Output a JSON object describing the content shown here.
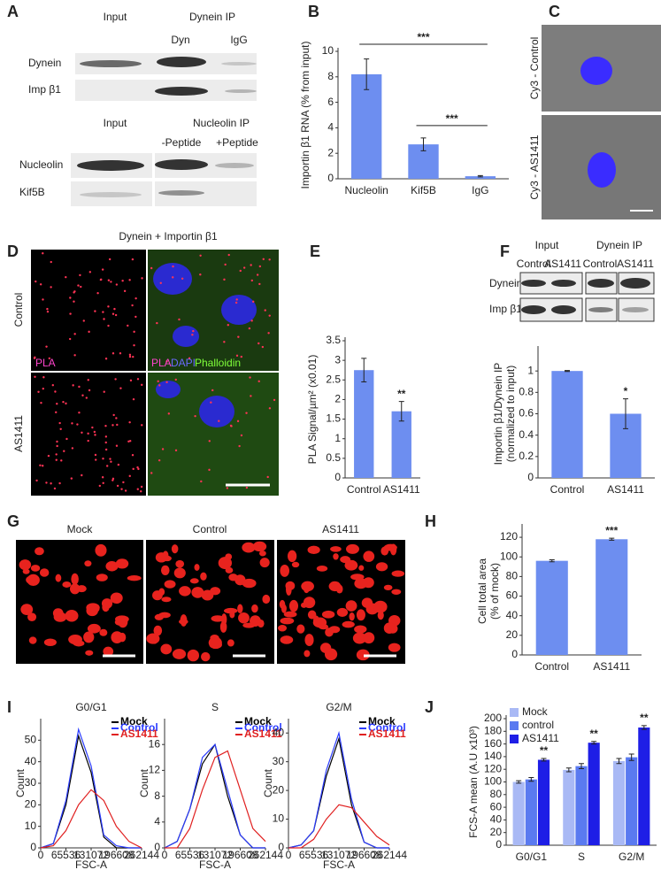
{
  "panels": {
    "A": {
      "letter": "A",
      "input_1": "Input",
      "ip_1": "Dynein IP",
      "lane_dyn": "Dyn",
      "lane_igg": "IgG",
      "row_dynein": "Dynein",
      "row_imp": "Imp β1",
      "input_2": "Input",
      "ip_2": "Nucleolin IP",
      "lane_minus": "-Peptide",
      "lane_plus": "+Peptide",
      "row_nucleolin": "Nucleolin",
      "row_kif5b": "Kif5B"
    },
    "B": {
      "letter": "B"
    },
    "C": {
      "letter": "C",
      "top": "Cy3 - Control",
      "bottom": "Cy3 - AS1411"
    },
    "D": {
      "letter": "D",
      "title": "Dynein + Importin β1",
      "row_1": "Control",
      "row_2": "AS1411",
      "pla_1": "PLA",
      "pla_2": "PLA",
      "dapi": "DAPI",
      "phalloidin": "Phalloidin"
    },
    "E": {
      "letter": "E"
    },
    "F": {
      "letter": "F",
      "input": "Input",
      "ip": "Dynein IP",
      "lanes": [
        "Control",
        "AS1411",
        "Control",
        "AS1411"
      ],
      "row_dynein": "Dynein",
      "row_imp": "Imp β1"
    },
    "G": {
      "letter": "G",
      "columns": [
        "Mock",
        "Control",
        "AS1411"
      ]
    },
    "H": {
      "letter": "H"
    },
    "I": {
      "letter": "I"
    },
    "J": {
      "letter": "J"
    }
  },
  "chart_data": [
    {
      "type": "bar",
      "ylabel": "Importin β1 RNA (% from input)",
      "categories": [
        "Nucleolin",
        "Kif5B",
        "IgG"
      ],
      "values": [
        8.2,
        2.7,
        0.2
      ],
      "errors": [
        1.2,
        0.5,
        0.05
      ],
      "color": "#6d8ef0",
      "ylim": [
        0,
        10
      ],
      "yticks": [
        0,
        2,
        4,
        6,
        8,
        10
      ],
      "annotations": [
        "***",
        "***"
      ]
    },
    {
      "type": "bar",
      "ylabel": "PLA Signal/µm² (x0.01)",
      "categories": [
        "Control",
        "AS1411"
      ],
      "values": [
        2.75,
        1.7
      ],
      "errors": [
        0.3,
        0.25
      ],
      "color": "#6d8ef0",
      "ylim": [
        0,
        3.5
      ],
      "yticks": [
        0,
        0.5,
        1,
        1.5,
        2,
        2.5,
        3,
        3.5
      ],
      "annotations": [
        "**"
      ]
    },
    {
      "type": "bar",
      "ylabel": [
        "Importin β1/Dynein IP",
        "(normalized to input)"
      ],
      "categories": [
        "Control",
        "AS1411"
      ],
      "values": [
        1.0,
        0.6
      ],
      "errors": [
        0.005,
        0.14
      ],
      "color": "#6d8ef0",
      "ylim": [
        0,
        1.2
      ],
      "yticks": [
        0,
        0.2,
        0.4,
        0.6,
        0.8,
        1
      ],
      "annotations": [
        "*"
      ]
    },
    {
      "type": "bar",
      "ylabel": [
        "Cell total area",
        "(% of mock)"
      ],
      "categories": [
        "Control",
        "AS1411"
      ],
      "values": [
        96,
        118
      ],
      "errors": [
        1,
        1
      ],
      "color": "#6d8ef0",
      "ylim": [
        0,
        130
      ],
      "yticks": [
        0,
        20,
        40,
        60,
        80,
        100,
        120
      ],
      "annotations": [
        "***"
      ]
    },
    {
      "type": "bar",
      "ylabel": "FCS-A mean (A.U x10³)",
      "categories": [
        "G0/G1",
        "S",
        "G2/M"
      ],
      "series": [
        {
          "name": "Mock",
          "color": "#a9b9f5",
          "values": [
            100,
            119,
            133
          ],
          "errors": [
            2,
            3,
            4
          ]
        },
        {
          "name": "control",
          "color": "#5a7af0",
          "values": [
            104,
            125,
            139
          ],
          "errors": [
            3,
            4,
            5
          ]
        },
        {
          "name": "AS1411",
          "color": "#1e1ee6",
          "values": [
            135,
            162,
            186
          ],
          "errors": [
            2,
            2,
            3
          ]
        }
      ],
      "ylim": [
        0,
        200
      ],
      "yticks": [
        0,
        20,
        40,
        60,
        80,
        100,
        120,
        140,
        160,
        180,
        200
      ],
      "annotations": [
        "**",
        "**",
        "**"
      ]
    },
    {
      "type": "line",
      "title": "G0/G1",
      "xlabel": "FSC-A",
      "ylabel": "Count",
      "x": [
        0,
        32768,
        65536,
        98304,
        131072,
        163840,
        196608,
        229376,
        262144
      ],
      "series": [
        {
          "name": "Mock",
          "color": "#000000",
          "values": [
            0,
            2,
            20,
            52,
            35,
            5,
            0,
            0,
            0
          ]
        },
        {
          "name": "Control",
          "color": "#2b3cff",
          "values": [
            0,
            2,
            22,
            55,
            38,
            6,
            1,
            0,
            0
          ]
        },
        {
          "name": "AS1411",
          "color": "#e02020",
          "values": [
            0,
            1,
            8,
            20,
            27,
            22,
            10,
            3,
            0
          ]
        }
      ],
      "xlim": [
        0,
        262144
      ],
      "xticks": [
        0,
        65536,
        131072,
        196608,
        262144
      ],
      "ylim": [
        0,
        60
      ],
      "yticks": [
        0,
        10,
        20,
        30,
        40,
        50
      ]
    },
    {
      "type": "line",
      "title": "S",
      "xlabel": "FSC-A",
      "ylabel": "Count",
      "x": [
        0,
        32768,
        65536,
        98304,
        131072,
        163840,
        196608,
        229376,
        262144
      ],
      "series": [
        {
          "name": "Mock",
          "color": "#000000",
          "values": [
            0,
            1,
            6,
            13,
            16,
            8,
            2,
            0,
            0
          ]
        },
        {
          "name": "Control",
          "color": "#2b3cff",
          "values": [
            0,
            1,
            6,
            14,
            16,
            9,
            2,
            0,
            0
          ]
        },
        {
          "name": "AS1411",
          "color": "#e02020",
          "values": [
            0,
            0,
            3,
            9,
            14,
            15,
            9,
            3,
            1
          ]
        }
      ],
      "xlim": [
        0,
        262144
      ],
      "xticks": [
        0,
        65536,
        131072,
        196608,
        262144
      ],
      "ylim": [
        0,
        20
      ],
      "yticks": [
        0,
        4,
        8,
        12,
        16
      ]
    },
    {
      "type": "line",
      "title": "G2/M",
      "xlabel": "FSC-A",
      "ylabel": "Count",
      "x": [
        0,
        32768,
        65536,
        98304,
        131072,
        163840,
        196608,
        229376,
        262144
      ],
      "series": [
        {
          "name": "Mock",
          "color": "#000000",
          "values": [
            0,
            1,
            6,
            25,
            38,
            15,
            2,
            0,
            0
          ]
        },
        {
          "name": "Control",
          "color": "#2b3cff",
          "values": [
            0,
            1,
            6,
            27,
            40,
            17,
            2,
            0,
            0
          ]
        },
        {
          "name": "AS1411",
          "color": "#e02020",
          "values": [
            0,
            0,
            3,
            10,
            15,
            14,
            9,
            4,
            1
          ]
        }
      ],
      "xlim": [
        0,
        262144
      ],
      "xticks": [
        0,
        65536,
        131072,
        196608,
        262144
      ],
      "ylim": [
        0,
        45
      ],
      "yticks": [
        0,
        10,
        20,
        30,
        40
      ]
    }
  ]
}
